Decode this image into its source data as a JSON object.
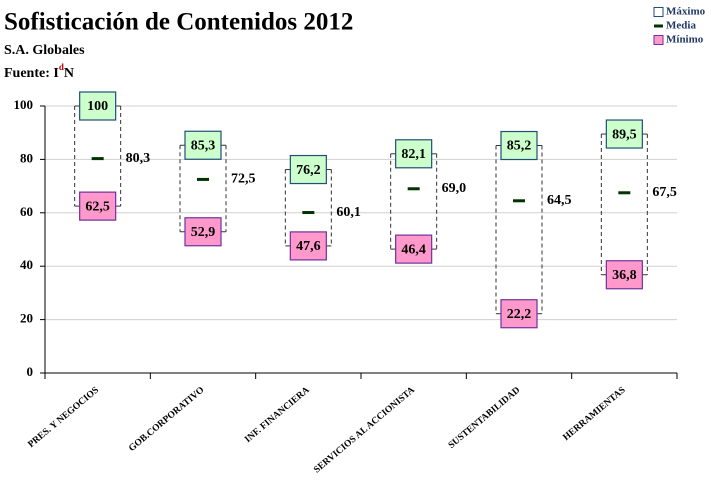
{
  "chart_data": {
    "type": "range",
    "title": "Sofisticación de Contenidos 2012",
    "subtitle": "S.A. Globales",
    "source": [
      "Fuente: I",
      "d",
      "N"
    ],
    "categories": [
      "PRES. Y NEGOCIOS",
      "GOB.CORPORATIVO",
      "INF. FINANCIERA",
      "SERVICIOS AL ACCIONISTA",
      "SUSTENTABILIDAD",
      "HERRAMIENTAS"
    ],
    "series": [
      {
        "name": "Máximo",
        "color": "#ccffcc",
        "border": "#1f4e79",
        "values": [
          100,
          85.3,
          76.2,
          82.1,
          85.2,
          89.5
        ],
        "value_labels": [
          "100",
          "85,3",
          "76,2",
          "82,1",
          "85,2",
          "89,5"
        ]
      },
      {
        "name": "Media",
        "color": "#003300",
        "values": [
          80.3,
          72.5,
          60.1,
          69.0,
          64.5,
          67.5
        ],
        "value_labels": [
          "80,3",
          "72,5",
          "60,1",
          "69,0",
          "64,5",
          "67,5"
        ]
      },
      {
        "name": "Mínimo",
        "color": "#ff99cc",
        "border": "#7030a0",
        "values": [
          62.5,
          52.9,
          47.6,
          46.4,
          22.2,
          36.8
        ],
        "value_labels": [
          "62,5",
          "52,9",
          "47,6",
          "46,4",
          "22,2",
          "36,8"
        ]
      }
    ],
    "ylim": [
      0,
      100
    ],
    "yticks": [
      0,
      20,
      40,
      60,
      80,
      100
    ],
    "grid": true,
    "legend": "top-right"
  }
}
